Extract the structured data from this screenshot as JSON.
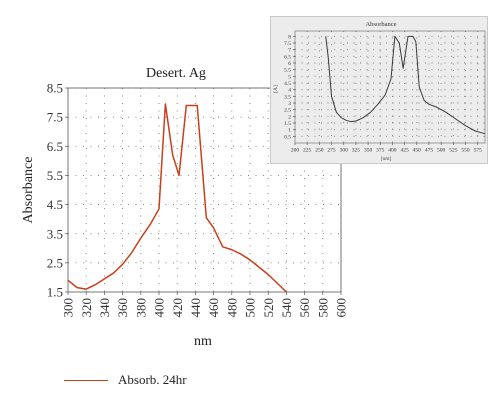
{
  "chart_data": [
    {
      "type": "line",
      "title": "Desert. Ag",
      "xlabel": "nm",
      "ylabel": "Absorbance",
      "xlim": [
        300,
        600
      ],
      "ylim": [
        1.5,
        8.5
      ],
      "x_ticks": [
        300,
        320,
        340,
        360,
        380,
        400,
        420,
        440,
        460,
        480,
        500,
        520,
        540,
        560,
        580,
        600
      ],
      "y_ticks": [
        1.5,
        2.5,
        3.5,
        4.5,
        5.5,
        6.5,
        7.5,
        8.5
      ],
      "x_tick_labels": [
        "300",
        "320",
        "340",
        "360",
        "380",
        "400",
        "420",
        "440",
        "460",
        "480",
        "500",
        "520",
        "540",
        "560",
        "580",
        "600"
      ],
      "y_tick_labels": [
        "1.5",
        "2.5",
        "3.5",
        "4.5",
        "5.5",
        "6.5",
        "7.5",
        "8.5"
      ],
      "grid": "dotted",
      "legend_position": "bottom-left",
      "series": [
        {
          "name": "Absorb. 24hr",
          "color": "#c8401c",
          "x": [
            300,
            310,
            320,
            330,
            340,
            350,
            360,
            370,
            380,
            390,
            400,
            407,
            415,
            422,
            430,
            442,
            452,
            460,
            470,
            480,
            490,
            500,
            510,
            520,
            530,
            540
          ],
          "y": [
            1.9,
            1.65,
            1.6,
            1.75,
            1.95,
            2.15,
            2.45,
            2.85,
            3.35,
            3.8,
            4.35,
            7.95,
            6.2,
            5.5,
            7.9,
            7.9,
            4.05,
            3.7,
            3.05,
            2.95,
            2.8,
            2.6,
            2.35,
            2.1,
            1.8,
            1.5
          ]
        }
      ]
    },
    {
      "type": "line",
      "title": "Absorbance",
      "xlabel": "[nm]",
      "ylabel": "[A]",
      "xlim": [
        200,
        590
      ],
      "ylim": [
        0,
        8.4
      ],
      "x_ticks": [
        200,
        225,
        250,
        275,
        300,
        325,
        350,
        375,
        400,
        425,
        450,
        475,
        500,
        525,
        550,
        575
      ],
      "y_ticks": [
        0.5,
        1,
        1.5,
        2,
        2.5,
        3,
        3.5,
        4,
        4.5,
        5,
        5.5,
        6,
        6.5,
        7,
        7.5,
        8
      ],
      "x_tick_labels": [
        "200",
        "225",
        "250",
        "275",
        "300",
        "325",
        "350",
        "375",
        "400",
        "425",
        "450",
        "475",
        "500",
        "525",
        "550",
        "575"
      ],
      "y_tick_labels": [
        "0.5",
        "1",
        "1.5",
        "2",
        "2.5",
        "3",
        "3.5",
        "4",
        "4.5",
        "5",
        "5.5",
        "6",
        "6.5",
        "7",
        "7.5",
        "8"
      ],
      "grid": "dotted",
      "series": [
        {
          "color": "#3a3a3a",
          "x": [
            263,
            268,
            275,
            285,
            295,
            305,
            315,
            325,
            340,
            355,
            370,
            385,
            397,
            405,
            414,
            422,
            432,
            442,
            448,
            455,
            465,
            475,
            490,
            510,
            530,
            550,
            570,
            590
          ],
          "y": [
            8,
            6.5,
            3.5,
            2.3,
            1.9,
            1.7,
            1.6,
            1.65,
            1.9,
            2.3,
            2.9,
            3.6,
            4.8,
            8,
            7.5,
            5.6,
            8,
            8,
            7.6,
            4.2,
            3.2,
            2.9,
            2.7,
            2.3,
            1.8,
            1.3,
            0.9,
            0.7
          ]
        }
      ]
    }
  ],
  "legend": {
    "label": "Absorb. 24hr",
    "color": "#c8401c"
  }
}
